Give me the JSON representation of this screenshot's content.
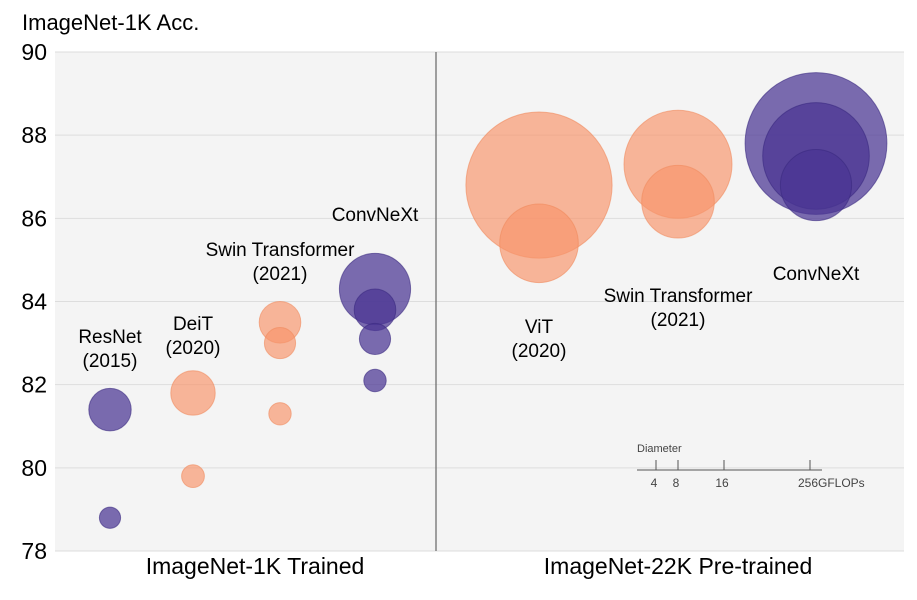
{
  "chart_data": {
    "type": "scatter",
    "title": "",
    "ylabel": "ImageNet-1K Acc.",
    "ylim": [
      78,
      90
    ],
    "yticks": [
      "78",
      "80",
      "82",
      "84",
      "86",
      "88",
      "90"
    ],
    "grid": true,
    "panels": [
      {
        "label": "ImageNet-1K Trained"
      },
      {
        "label": "ImageNet-22K Pre-trained"
      }
    ],
    "colors": {
      "orange": "#f7956b",
      "purple": "#4a3593",
      "panel_bg": "#f4f4f4",
      "grid": "#dddddd",
      "divider": "#666666"
    },
    "group_labels": [
      {
        "name": "ResNet",
        "year": "(2015)"
      },
      {
        "name": "DeiT",
        "year": "(2020)"
      },
      {
        "name": "Swin Transformer",
        "year": "(2021)"
      },
      {
        "name": "ConvNeXt",
        "year": ""
      },
      {
        "name": "ViT",
        "year": "(2020)"
      },
      {
        "name": "Swin Transformer",
        "year": "(2021)"
      },
      {
        "name": "ConvNeXt",
        "year": ""
      }
    ],
    "series": [
      {
        "model": "ResNet",
        "panel": "ImageNet-1K Trained",
        "color": "purple",
        "points": [
          {
            "acc": 78.8,
            "gflops": 4
          },
          {
            "acc": 81.4,
            "gflops": 16
          }
        ]
      },
      {
        "model": "DeiT",
        "panel": "ImageNet-1K Trained",
        "color": "orange",
        "points": [
          {
            "acc": 79.8,
            "gflops": 4.6
          },
          {
            "acc": 81.8,
            "gflops": 17.6
          }
        ]
      },
      {
        "model": "Swin Transformer",
        "panel": "ImageNet-1K Trained",
        "color": "orange",
        "points": [
          {
            "acc": 81.3,
            "gflops": 4.5
          },
          {
            "acc": 83.0,
            "gflops": 8.7
          },
          {
            "acc": 83.5,
            "gflops": 15.4
          }
        ]
      },
      {
        "model": "ConvNeXt",
        "panel": "ImageNet-1K Trained",
        "color": "purple",
        "points": [
          {
            "acc": 82.1,
            "gflops": 4.5
          },
          {
            "acc": 83.1,
            "gflops": 8.7
          },
          {
            "acc": 83.8,
            "gflops": 15.4
          },
          {
            "acc": 84.3,
            "gflops": 45
          }
        ]
      },
      {
        "model": "ViT",
        "panel": "ImageNet-22K Pre-trained",
        "color": "orange",
        "points": [
          {
            "acc": 85.4,
            "gflops": 55
          },
          {
            "acc": 86.8,
            "gflops": 190
          }
        ]
      },
      {
        "model": "Swin Transformer",
        "panel": "ImageNet-22K Pre-trained",
        "color": "orange",
        "points": [
          {
            "acc": 86.4,
            "gflops": 47
          },
          {
            "acc": 87.3,
            "gflops": 104
          }
        ]
      },
      {
        "model": "ConvNeXt",
        "panel": "ImageNet-22K Pre-trained",
        "color": "purple",
        "points": [
          {
            "acc": 86.8,
            "gflops": 45
          },
          {
            "acc": 87.5,
            "gflops": 101
          },
          {
            "acc": 87.8,
            "gflops": 179
          }
        ]
      }
    ],
    "size_legend": {
      "title": "Diameter",
      "ticks": [
        "4",
        "8",
        "16",
        "256"
      ],
      "unit": "GFLOPs"
    }
  }
}
